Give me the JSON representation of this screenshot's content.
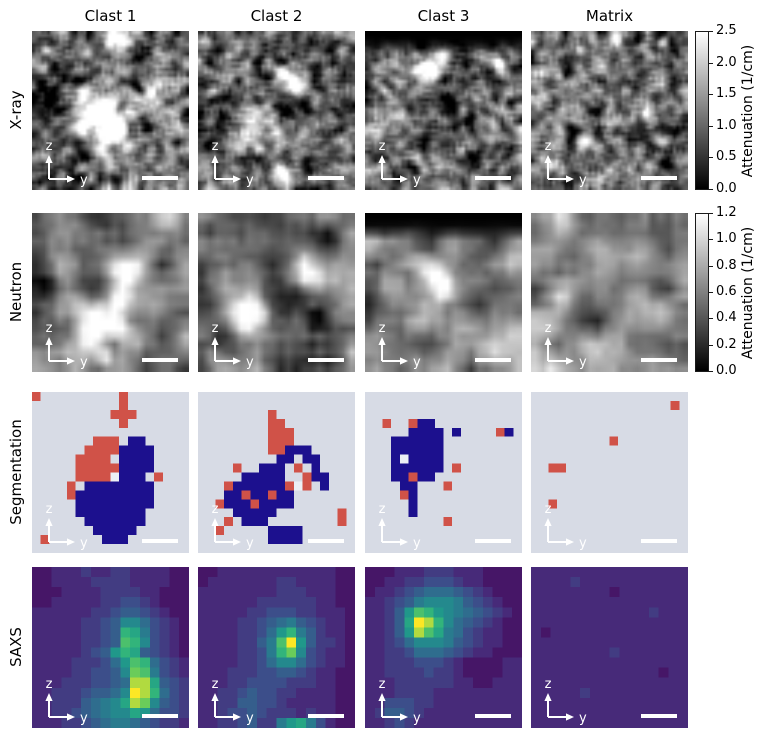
{
  "column_headers": [
    "Clast 1",
    "Clast 2",
    "Clast 3",
    "Matrix"
  ],
  "row_labels": [
    "X-ray",
    "Neutron",
    "Segmentation",
    "SAXS"
  ],
  "axes_overlay": {
    "z_label": "z",
    "y_label": "y"
  },
  "scale_bar": {
    "width": 36,
    "height": 4,
    "color": "#ffffff"
  },
  "colorbars": [
    {
      "row": "X-ray",
      "label": "Attenuation (1/cm)",
      "min": 0.0,
      "max": 2.5,
      "ticks": [
        "2.5",
        "2.0",
        "1.5",
        "1.0",
        "0.5",
        "0.0"
      ],
      "cmap": "gray"
    },
    {
      "row": "Neutron",
      "label": "Attenuation (1/cm)",
      "min": 0.0,
      "max": 1.2,
      "ticks": [
        "1.2",
        "1.0",
        "0.8",
        "0.6",
        "0.4",
        "0.2",
        "0.0"
      ],
      "cmap": "gray"
    }
  ],
  "gray_panels": {
    "xray": [
      {
        "res": 52,
        "seed": 11,
        "base": 0.42,
        "noise": 0.65,
        "noise2": 0.3,
        "smooth": 1,
        "topband": 0,
        "blobs": [
          [
            0.56,
            0.03,
            0.11,
            0.9
          ],
          [
            0.44,
            0.5,
            0.18,
            1.0
          ],
          [
            0.53,
            0.63,
            0.12,
            0.75
          ],
          [
            0.32,
            0.6,
            0.1,
            0.55
          ],
          [
            0.46,
            0.78,
            0.09,
            0.5
          ],
          [
            0.08,
            0.42,
            0.13,
            -0.5
          ],
          [
            0.24,
            0.29,
            0.08,
            -0.35
          ],
          [
            0.66,
            0.27,
            0.07,
            -0.3
          ],
          [
            0.29,
            0.76,
            0.07,
            -0.3
          ],
          [
            0.79,
            0.4,
            0.1,
            0.2
          ],
          [
            0.08,
            0.12,
            0.035,
            0.55
          ],
          [
            0.98,
            0.55,
            0.05,
            -0.45
          ],
          [
            0.7,
            0.6,
            0.06,
            -0.25
          ]
        ]
      },
      {
        "res": 52,
        "seed": 12,
        "base": 0.42,
        "noise": 0.65,
        "noise2": 0.3,
        "smooth": 1,
        "topband": 0,
        "blobs": [
          [
            0.61,
            0.33,
            0.09,
            0.95
          ],
          [
            0.52,
            0.24,
            0.06,
            0.65
          ],
          [
            0.44,
            0.29,
            0.07,
            -0.5
          ],
          [
            0.68,
            0.46,
            0.07,
            -0.4
          ],
          [
            0.57,
            0.52,
            0.06,
            -0.35
          ],
          [
            0.34,
            0.6,
            0.14,
            0.35
          ],
          [
            0.24,
            0.73,
            0.11,
            0.3
          ],
          [
            0.53,
            0.91,
            0.08,
            0.65
          ],
          [
            0.73,
            0.86,
            0.09,
            -0.35
          ],
          [
            0.19,
            0.15,
            0.035,
            0.55
          ],
          [
            0.86,
            0.2,
            0.05,
            -0.25
          ],
          [
            0.97,
            0.73,
            0.05,
            0.45
          ],
          [
            0.13,
            0.42,
            0.06,
            -0.25
          ]
        ]
      },
      {
        "res": 52,
        "seed": 13,
        "base": 0.42,
        "noise": 0.65,
        "noise2": 0.3,
        "smooth": 1,
        "topband": 0.13,
        "blobs": [
          [
            0.4,
            0.22,
            0.1,
            0.9
          ],
          [
            0.5,
            0.14,
            0.07,
            0.55
          ],
          [
            0.3,
            0.36,
            0.1,
            0.3
          ],
          [
            0.56,
            0.43,
            0.13,
            -0.45
          ],
          [
            0.42,
            0.6,
            0.11,
            -0.3
          ],
          [
            0.66,
            0.3,
            0.08,
            -0.25
          ],
          [
            0.14,
            0.55,
            0.13,
            0.22
          ],
          [
            0.62,
            0.76,
            0.05,
            0.35
          ],
          [
            0.86,
            0.2,
            0.04,
            0.45
          ],
          [
            0.3,
            0.85,
            0.06,
            -0.2
          ]
        ]
      },
      {
        "res": 52,
        "seed": 14,
        "base": 0.42,
        "noise": 0.65,
        "noise2": 0.3,
        "smooth": 1,
        "topband": 0,
        "blobs": [
          [
            0.55,
            0.04,
            0.05,
            0.75
          ],
          [
            0.84,
            0.07,
            0.045,
            0.65
          ],
          [
            0.3,
            0.11,
            0.035,
            0.45
          ],
          [
            0.73,
            0.52,
            0.04,
            0.55
          ],
          [
            0.18,
            0.28,
            0.035,
            0.4
          ],
          [
            0.45,
            0.3,
            0.06,
            -0.3
          ],
          [
            0.24,
            0.6,
            0.06,
            -0.28
          ],
          [
            0.6,
            0.76,
            0.04,
            0.35
          ],
          [
            0.88,
            0.45,
            0.04,
            0.3
          ],
          [
            0.1,
            0.85,
            0.04,
            0.3
          ]
        ]
      }
    ],
    "neutron": [
      {
        "res": 20,
        "seed": 21,
        "base": 0.5,
        "noise": 0.5,
        "noise2": 0.25,
        "smooth": 1,
        "topband": 0,
        "blobs": [
          [
            0.6,
            0.38,
            0.13,
            0.55
          ],
          [
            0.56,
            0.54,
            0.12,
            0.7
          ],
          [
            0.4,
            0.68,
            0.15,
            0.9
          ],
          [
            0.55,
            0.73,
            0.11,
            0.75
          ],
          [
            0.46,
            0.93,
            0.08,
            0.5
          ],
          [
            0.06,
            0.45,
            0.14,
            -0.5
          ],
          [
            0.3,
            0.18,
            0.13,
            -0.18
          ],
          [
            0.88,
            0.28,
            0.1,
            -0.12
          ]
        ]
      },
      {
        "res": 20,
        "seed": 22,
        "base": 0.5,
        "noise": 0.5,
        "noise2": 0.25,
        "smooth": 1,
        "topband": 0,
        "blobs": [
          [
            0.71,
            0.4,
            0.1,
            0.55
          ],
          [
            0.67,
            0.3,
            0.08,
            0.4
          ],
          [
            0.33,
            0.55,
            0.11,
            0.5
          ],
          [
            0.28,
            0.68,
            0.12,
            0.6
          ],
          [
            0.43,
            0.64,
            0.09,
            0.35
          ],
          [
            0.86,
            0.12,
            0.11,
            -0.4
          ],
          [
            0.04,
            0.08,
            0.09,
            -0.35
          ],
          [
            0.76,
            0.67,
            0.1,
            -0.4
          ],
          [
            0.92,
            0.9,
            0.09,
            -0.2
          ],
          [
            0.05,
            0.92,
            0.08,
            0.3
          ]
        ]
      },
      {
        "res": 20,
        "seed": 23,
        "base": 0.5,
        "noise": 0.5,
        "noise2": 0.25,
        "smooth": 1,
        "topband": 0.14,
        "blobs": [
          [
            0.45,
            0.38,
            0.12,
            0.8
          ],
          [
            0.5,
            0.5,
            0.1,
            0.5
          ],
          [
            0.73,
            0.6,
            0.13,
            -0.3
          ],
          [
            0.2,
            0.73,
            0.11,
            -0.2
          ],
          [
            0.04,
            0.32,
            0.09,
            -0.25
          ],
          [
            0.36,
            0.86,
            0.09,
            -0.15
          ],
          [
            0.25,
            0.3,
            0.1,
            0.2
          ]
        ]
      },
      {
        "res": 20,
        "seed": 24,
        "base": 0.52,
        "noise": 0.45,
        "noise2": 0.22,
        "smooth": 1,
        "topband": 0,
        "blobs": [
          [
            0.68,
            0.52,
            0.14,
            0.2
          ],
          [
            0.3,
            0.3,
            0.13,
            -0.15
          ],
          [
            0.86,
            0.82,
            0.11,
            -0.18
          ],
          [
            0.15,
            0.75,
            0.11,
            0.12
          ],
          [
            0.55,
            0.14,
            0.11,
            -0.12
          ],
          [
            0.4,
            0.85,
            0.1,
            0.12
          ]
        ]
      }
    ]
  },
  "seg": {
    "palette": {
      ".": "#d7dbe5",
      "B": "#1c108e",
      "R": "#d05248",
      "W": "#eceff5"
    },
    "grids": [
      [
        "R.........R.......",
        "..........R.......",
        ".........RRR......",
        "..........R.......",
        "..................",
        ".......RRR.BB.....",
        "......RRRRBBBB....",
        ".....RRRR.BBBB....",
        ".....RRRRRBBBB....",
        ".....RRRRWBBB.R...",
        "....R.BBBBBBBB....",
        "....RBBBBBBBBB....",
        ".....BBBBBBBBB....",
        ".....BBBBBBBB.....",
        "......BBBBBBB.....",
        ".......BBBBB......",
        ".R......BBB.......",
        ".................."
      ],
      [
        "..................",
        "..................",
        "........R.........",
        "........RR........",
        "........RRR.......",
        "........RRR.......",
        "........RRBBB.....",
        ".........BB.BB....",
        "....R..BBB.R.B....",
        ".....BBBBB..RBB...",
        "...RBBBBBBRWR.B...",
        "...BBRBBRBB.......",
        "..RBBBRBBBB.......",
        "....BBBBB.......R.",
        "...R.BBB........R.",
        "..R.....BBBB......",
        "........BBBB......",
        ".................."
      ],
      [
        "..................",
        "..................",
        "..................",
        "..R..RBB..........",
        ".....BBBB.B....RB.",
        "...BBBBBB.........",
        "...BBBBBB.........",
        "...BWBBBB.........",
        "...BBBBBB.R.......",
        "...BBRBB..........",
        "....BB...R........",
        "....RB............",
        ".....B............",
        ".....B............",
        ".........R........",
        "..................",
        "..................",
        ".................."
      ],
      [
        "..................",
        "................R.",
        "..................",
        "..................",
        "..................",
        ".........R........",
        "..................",
        "..................",
        "..RR..............",
        "..................",
        "..................",
        "..................",
        "..R...............",
        "..................",
        "..................",
        "..................",
        "..................",
        ".................."
      ]
    ]
  },
  "saxs": {
    "viridis": [
      [
        0,
        "#440154"
      ],
      [
        0.125,
        "#482878"
      ],
      [
        0.25,
        "#3e4a89"
      ],
      [
        0.375,
        "#31688e"
      ],
      [
        0.5,
        "#26828e"
      ],
      [
        0.625,
        "#1f9e89"
      ],
      [
        0.75,
        "#35b779"
      ],
      [
        0.875,
        "#6ece58"
      ],
      [
        1,
        "#fde725"
      ]
    ],
    "grids": [
      [
        "1122232233222211",
        "1122223333222211",
        "1112222333322111",
        "1122222334432111",
        "2222223345543211",
        "2222233458864321",
        "222223345ba74321",
        "222223345cb84321",
        "222223459ba54321",
        "2222333469cb6432",
        "2222334458dc7432",
        "2223334456eea543",
        "2233345568feb643",
        "223335678aed8543",
        "2233456788a96443",
        "2223345677654332"
      ],
      [
        "1122222222222211",
        "1222222233222211",
        "2222222233322211",
        "2222223333332211",
        "2222233444332221",
        "2222334567543221",
        "222233469b753221",
        "22223357cf953321",
        "22223347bd843221",
        "2222334688643221",
        "2223334455432211",
        "2223344443332211",
        "2233454433222211",
        "2233554432222211",
        "2234454333232211",
        "2233453379a74211"
      ],
      [
        "1112223332221111",
        "1122334443221111",
        "1223456665432111",
        "2234578887543211",
        "22359cb987654321",
        "2235afeb86543211",
        "22359eca76432211",
        "2234688875432211",
        "2233466654322111",
        "2233344432111122",
        "2233334332111122",
        "2223333332211222",
        "2223333222222222",
        "2244433222222222",
        "2355432222222222",
        "2234322222222222"
      ],
      [
        "2222222222222222",
        "2222322222222222",
        "2222222212222222",
        "2222222222222222",
        "2222222222223222",
        "2222222222222222",
        "2122222222222222",
        "2222222222222222",
        "2222222232222222",
        "2222222222222222",
        "2222222222222122",
        "2222222222222222",
        "2222232222222222",
        "2222222222222222",
        "2222222222222222",
        "2222222222222222"
      ]
    ]
  }
}
